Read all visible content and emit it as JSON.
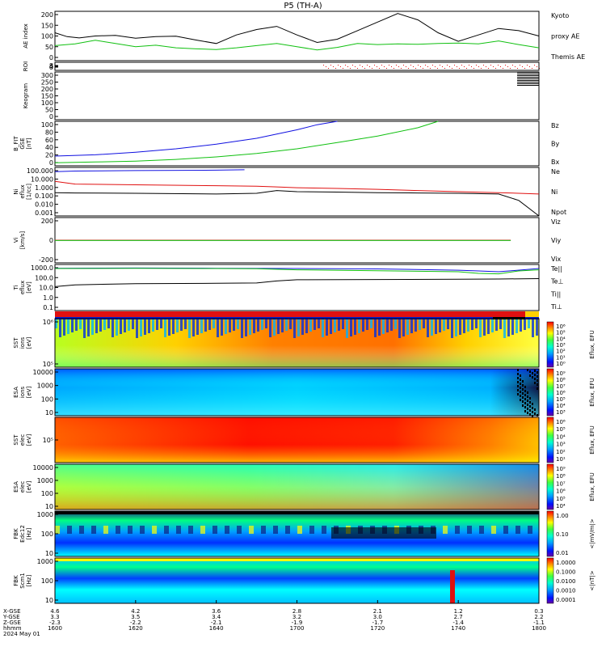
{
  "title": "P5 (TH-A)",
  "date_label": "2024 May 01",
  "colors": {
    "red": "#e01010",
    "green": "#10c010",
    "blue": "#1010e0",
    "black": "#000000"
  },
  "chart_data": [
    {
      "type": "line",
      "panel": "ae",
      "ylabel": "AE index",
      "yticks": [
        "200",
        "150",
        "100",
        "50",
        "0"
      ],
      "ylim": [
        -20,
        210
      ],
      "legend": [
        {
          "name": "Kyoto",
          "color": "green"
        },
        {
          "name": "proxy AE",
          "color": "green"
        },
        {
          "name": "Themis AE",
          "color": "black"
        }
      ],
      "series": [
        {
          "name": "Themis AE",
          "color": "black",
          "x": [
            1600,
            1603,
            1606,
            1610,
            1615,
            1620,
            1625,
            1630,
            1635,
            1640,
            1645,
            1650,
            1655,
            1700,
            1705,
            1710,
            1715,
            1720,
            1725,
            1730,
            1735,
            1740,
            1745,
            1750,
            1755,
            1800
          ],
          "y": [
            110,
            92,
            86,
            95,
            98,
            85,
            92,
            94,
            76,
            60,
            100,
            125,
            140,
            100,
            65,
            80,
            120,
            160,
            200,
            170,
            110,
            70,
            100,
            130,
            120,
            95
          ]
        },
        {
          "name": "Kyoto proxy AE",
          "color": "green",
          "x": [
            1600,
            1605,
            1610,
            1615,
            1620,
            1625,
            1630,
            1635,
            1640,
            1645,
            1650,
            1655,
            1700,
            1705,
            1710,
            1715,
            1720,
            1725,
            1730,
            1735,
            1740,
            1745,
            1750,
            1755,
            1800
          ],
          "y": [
            50,
            58,
            75,
            60,
            45,
            52,
            40,
            35,
            32,
            40,
            50,
            60,
            45,
            30,
            42,
            60,
            55,
            58,
            56,
            60,
            62,
            58,
            72,
            55,
            40
          ]
        }
      ]
    },
    {
      "type": "heatmap",
      "panel": "roi",
      "ylabel": "ROI",
      "yticks": [
        "8",
        "4",
        "0"
      ],
      "ylim": [
        0,
        9
      ]
    },
    {
      "type": "heatmap",
      "panel": "keogram",
      "ylabel": "Keogram",
      "yticks": [
        "300",
        "250",
        "200",
        "150",
        "100",
        "50",
        "0"
      ],
      "ylim": [
        0,
        300
      ]
    },
    {
      "type": "line",
      "panel": "bfield",
      "ylabel": "B_FIT (GSE) [nT]",
      "ylabel_lines": [
        "B_FIT",
        "GSE",
        "[nT]"
      ],
      "yticks": [
        "100",
        "80",
        "60",
        "40",
        "20",
        "0"
      ],
      "ylim": [
        -5,
        100
      ],
      "legend": [
        {
          "name": "Bz",
          "color": "red"
        },
        {
          "name": "By",
          "color": "green"
        },
        {
          "name": "Bx",
          "color": "blue"
        }
      ],
      "series": [
        {
          "name": "Bx",
          "color": "blue",
          "x": [
            1600,
            1610,
            1620,
            1630,
            1640,
            1650,
            1700,
            1705,
            1710
          ],
          "y": [
            18,
            21,
            27,
            35,
            46,
            60,
            80,
            92,
            100
          ]
        },
        {
          "name": "By",
          "color": "green",
          "x": [
            1600,
            1610,
            1620,
            1630,
            1640,
            1650,
            1700,
            1710,
            1720,
            1730,
            1735
          ],
          "y": [
            2,
            4,
            6,
            10,
            16,
            24,
            35,
            50,
            65,
            85,
            100
          ]
        }
      ]
    },
    {
      "type": "line",
      "panel": "density",
      "ylabel": "Ni (eflux) [1/cc]",
      "ylabel_lines": [
        "Ni",
        "eflux",
        "[1/cc]"
      ],
      "yscale": "log",
      "yticks": [
        "100.000",
        "10.000",
        "1.000",
        "0.100",
        "0.010",
        "0.001"
      ],
      "ylim": [
        0.001,
        200
      ],
      "legend": [
        {
          "name": "Ne",
          "color": "red"
        },
        {
          "name": "Ni",
          "color": "black"
        },
        {
          "name": "Npot",
          "color": "blue"
        }
      ],
      "series": [
        {
          "name": "Npot",
          "color": "blue",
          "x": [
            1600,
            1605,
            1620,
            1640,
            1647
          ],
          "y": [
            70,
            80,
            90,
            100,
            110
          ]
        },
        {
          "name": "Ne",
          "color": "red",
          "x": [
            1600,
            1605,
            1620,
            1640,
            1650,
            1655,
            1700,
            1710,
            1720,
            1730,
            1740,
            1750,
            1755,
            1800
          ],
          "y": [
            6,
            3,
            2.5,
            2,
            1.8,
            1.5,
            1.2,
            1.0,
            0.8,
            0.6,
            0.45,
            0.35,
            0.3,
            0.25
          ]
        },
        {
          "name": "Ni",
          "color": "black",
          "x": [
            1600,
            1605,
            1620,
            1640,
            1650,
            1655,
            1700,
            1710,
            1720,
            1730,
            1740,
            1750,
            1755,
            1800
          ],
          "y": [
            0.35,
            0.32,
            0.3,
            0.25,
            0.3,
            0.6,
            0.45,
            0.4,
            0.35,
            0.32,
            0.3,
            0.25,
            0.05,
            0.001
          ]
        }
      ]
    },
    {
      "type": "line",
      "panel": "velocity",
      "ylabel": "Vi [km/s]",
      "ylabel_lines": [
        "Vi",
        "[km/s]"
      ],
      "yticks": [
        "200",
        "0",
        "-200"
      ],
      "ylim": [
        -330,
        330
      ],
      "legend": [
        {
          "name": "Viz",
          "color": "red"
        },
        {
          "name": "Viy",
          "color": "green"
        },
        {
          "name": "Vix",
          "color": "blue"
        }
      ],
      "series": [
        {
          "name": "Viz",
          "color": "red",
          "x": [
            1600,
            1700,
            1753
          ],
          "y": [
            0,
            0,
            0
          ]
        },
        {
          "name": "Viy",
          "color": "green",
          "x": [
            1600,
            1700,
            1753
          ],
          "y": [
            -5,
            -5,
            -5
          ]
        }
      ]
    },
    {
      "type": "line",
      "panel": "temperature",
      "ylabel": "Ti (eflux) [eV]",
      "ylabel_lines": [
        "Ti",
        "eflux",
        "[eV]"
      ],
      "yscale": "log",
      "yticks": [
        "1000.0",
        "100.0",
        "10.0",
        "1.0",
        "0.1"
      ],
      "ylim": [
        0.05,
        8000
      ],
      "legend": [
        {
          "name": "Te||",
          "color": "black"
        },
        {
          "name": "Te⊥",
          "color": "red"
        },
        {
          "name": "Ti||",
          "color": "green"
        },
        {
          "name": "Ti⊥",
          "color": "blue"
        }
      ],
      "series": [
        {
          "name": "Ti⊥",
          "color": "blue",
          "x": [
            1600,
            1620,
            1640,
            1700,
            1720,
            1740,
            1745,
            1750,
            1800
          ],
          "y": [
            3000,
            3200,
            3000,
            2800,
            2500,
            1800,
            1500,
            1200,
            2800
          ]
        },
        {
          "name": "Ti||",
          "color": "green",
          "x": [
            1600,
            1620,
            1640,
            1650,
            1700,
            1720,
            1740,
            1745,
            1750,
            1755,
            1800
          ],
          "y": [
            2800,
            3000,
            2800,
            2600,
            2000,
            1600,
            1200,
            800,
            700,
            1500,
            2000
          ]
        },
        {
          "name": "Te||",
          "color": "black",
          "x": [
            1600,
            1605,
            1620,
            1640,
            1650,
            1655,
            1700,
            1720,
            1740,
            1750,
            1800
          ],
          "y": [
            25,
            40,
            55,
            60,
            65,
            110,
            150,
            160,
            170,
            180,
            200
          ]
        }
      ]
    },
    {
      "type": "heatmap",
      "panel": "sst_ion",
      "ylabel": "SST ions [eV]",
      "ylabel_lines": [
        "SST",
        "ions",
        "[eV]"
      ],
      "yticks": [
        "10⁶",
        "10⁵"
      ],
      "colorbar": {
        "label": "Eflux, EFU",
        "ticks": [
          "10⁶",
          "10⁵",
          "10⁴",
          "10³",
          "10²",
          "10¹",
          "10⁰"
        ]
      }
    },
    {
      "type": "heatmap",
      "panel": "esa_ion",
      "ylabel": "ESA ions [eV]",
      "ylabel_lines": [
        "ESA",
        "ions",
        "[eV]"
      ],
      "yticks": [
        "10000",
        "1000",
        "100",
        "10"
      ],
      "colorbar": {
        "label": "Eflux, EFU",
        "ticks": [
          "10⁹",
          "10⁸",
          "10⁷",
          "10⁶",
          "10⁵",
          "10⁴",
          "10³"
        ]
      }
    },
    {
      "type": "heatmap",
      "panel": "sst_elec",
      "ylabel": "SST elec [eV]",
      "ylabel_lines": [
        "SST",
        "elec",
        "[eV]"
      ],
      "yticks": [
        "10⁵"
      ],
      "colorbar": {
        "label": "Eflux, EFU",
        "ticks": [
          "10⁶",
          "10⁵",
          "10⁴",
          "10³",
          "10²",
          "10¹"
        ]
      }
    },
    {
      "type": "heatmap",
      "panel": "esa_elec",
      "ylabel": "ESA elec [eV]",
      "ylabel_lines": [
        "ESA",
        "elec",
        "[eV]"
      ],
      "yticks": [
        "10000",
        "1000",
        "100",
        "10"
      ],
      "colorbar": {
        "label": "Eflux, EFU",
        "ticks": [
          "10⁹",
          "10⁸",
          "10⁷",
          "10⁶",
          "10⁵",
          "10⁴"
        ]
      }
    },
    {
      "type": "heatmap",
      "panel": "fbk_e",
      "ylabel": "FBK Edc12 [Hz]",
      "ylabel_lines": [
        "FBK",
        "Edc12",
        "[Hz]"
      ],
      "yticks": [
        "1000",
        "100",
        "10"
      ],
      "colorbar": {
        "label": "<|mV/m|>",
        "ticks": [
          "1.00",
          "0.10",
          "0.01"
        ]
      }
    },
    {
      "type": "heatmap",
      "panel": "fbk_b",
      "ylabel": "FBK Scm1 [Hz]",
      "ylabel_lines": [
        "FBK",
        "Scm1",
        "[Hz]"
      ],
      "yticks": [
        "1000",
        "100",
        "10"
      ],
      "colorbar": {
        "label": "<|nT|>",
        "ticks": [
          "1.0000",
          "0.1000",
          "0.0100",
          "0.0010",
          "0.0001"
        ]
      }
    }
  ],
  "x_axis": {
    "row_labels": [
      "X-GSE",
      "Y-GSE",
      "Z-GSE",
      "hhmm",
      "2024 May 01"
    ],
    "ticks": [
      {
        "x": 1600,
        "vals": [
          "4.6",
          "3.3",
          "-2.3",
          "1600"
        ]
      },
      {
        "x": 1620,
        "vals": [
          "4.2",
          "3.5",
          "-2.2",
          "1620"
        ]
      },
      {
        "x": 1640,
        "vals": [
          "3.6",
          "3.4",
          "-2.1",
          "1640"
        ]
      },
      {
        "x": 1700,
        "vals": [
          "2.8",
          "3.2",
          "-1.9",
          "1700"
        ]
      },
      {
        "x": 1720,
        "vals": [
          "2.1",
          "3.0",
          "-1.7",
          "1720"
        ]
      },
      {
        "x": 1740,
        "vals": [
          "1.2",
          "2.7",
          "-1.4",
          "1740"
        ]
      },
      {
        "x": 1800,
        "vals": [
          "0.3",
          "2.2",
          "-1.1",
          "1800"
        ]
      }
    ]
  }
}
